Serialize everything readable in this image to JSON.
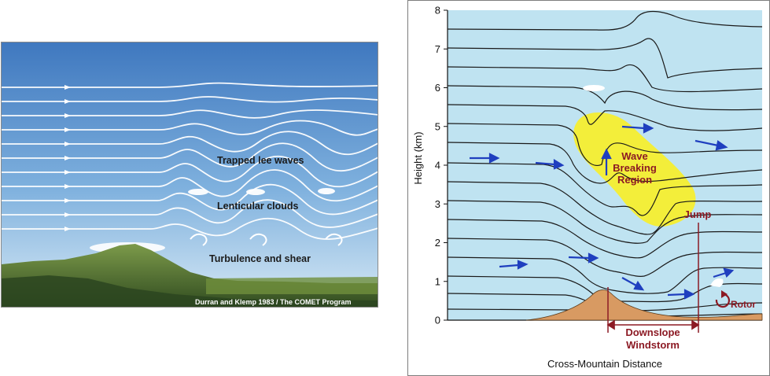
{
  "left_figure": {
    "labels": {
      "trapped": "Trapped lee waves",
      "lenticular": "Lenticular clouds",
      "turbulence": "Turbulence and shear"
    },
    "credit": "Durran and Klemp 1983 / The COMET Program"
  },
  "right_figure": {
    "x_axis_label": "Cross-Mountain Distance",
    "y_axis_label": "Height (km)",
    "y_ticks": [
      "0",
      "1",
      "2",
      "3",
      "4",
      "5",
      "6",
      "7",
      "8"
    ],
    "labels": {
      "wave_breaking": [
        "Wave",
        "Breaking",
        "Region"
      ],
      "jump": "Jump",
      "rotor": "Rotor",
      "downslope": [
        "Downslope",
        "Windstorm"
      ]
    }
  },
  "colors": {
    "sky_top": "#4e86c6",
    "sky_bottom": "#c9e1f3",
    "plot_bg": "#bfe3f1",
    "breaking_region": "#f3ee3a",
    "mountain": "#d89a62",
    "arrow_blue": "#1f3fbf",
    "maroon": "#8c1a24"
  }
}
